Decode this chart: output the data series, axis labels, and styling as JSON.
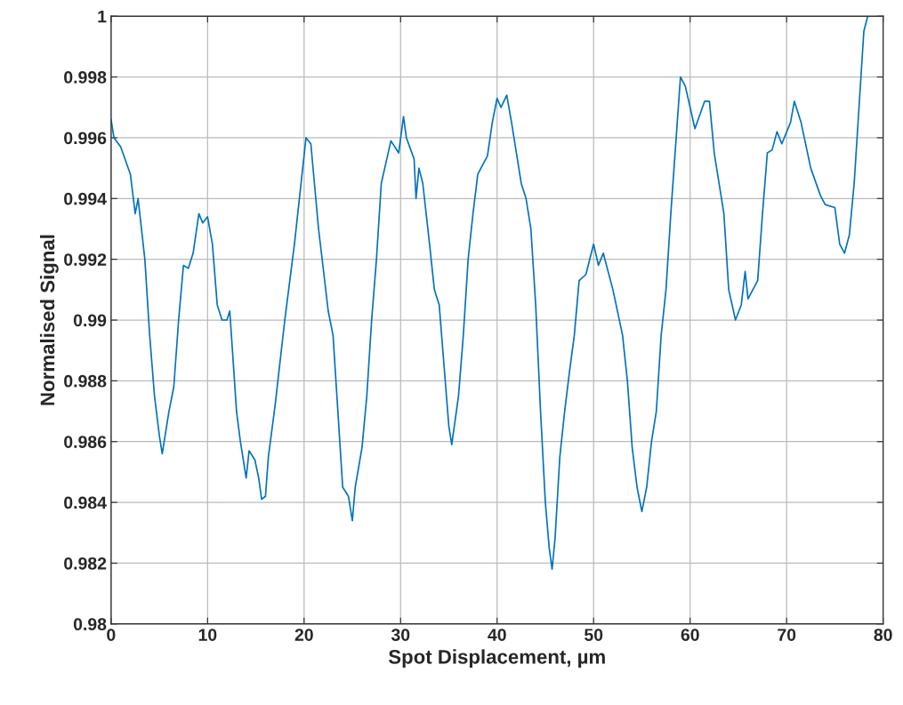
{
  "chart_data": {
    "type": "line",
    "xlabel": "Spot Displacement, µm",
    "ylabel": "Normalised Signal",
    "xlim": [
      0,
      80
    ],
    "xticks": [
      0,
      10,
      20,
      30,
      40,
      50,
      60,
      70,
      80
    ],
    "ylim": [
      0.98,
      1
    ],
    "yticks": [
      0.98,
      0.982,
      0.984,
      0.986,
      0.988,
      0.99,
      0.992,
      0.994,
      0.996,
      0.998,
      1
    ],
    "grid": true,
    "x": [
      0,
      0.3,
      1,
      2,
      2.5,
      2.8,
      3.5,
      4,
      4.5,
      5,
      5.3,
      5.6,
      6,
      6.5,
      7,
      7.5,
      8,
      8.5,
      9.1,
      9.5,
      10,
      10.5,
      11,
      11.5,
      12,
      12.3,
      13,
      13.4,
      14,
      14.3,
      14.9,
      15.3,
      15.6,
      16,
      16.3,
      17,
      18,
      19,
      20.2,
      20.7,
      21.5,
      22.5,
      23,
      23.5,
      24,
      24.6,
      25,
      25.3,
      26,
      26.5,
      27,
      27.5,
      28,
      29,
      29.8,
      30.3,
      30.6,
      31.4,
      31.6,
      31.9,
      32.3,
      33,
      33.5,
      34,
      34.5,
      35,
      35.3,
      36,
      36.5,
      37,
      37.5,
      38,
      38.5,
      39,
      39.5,
      40,
      40.4,
      41,
      41.5,
      42,
      42.5,
      43,
      43.5,
      44,
      44.5,
      45,
      45.4,
      45.7,
      46,
      46.5,
      47,
      47.5,
      48,
      48.5,
      49.2,
      50,
      50.5,
      51,
      52,
      53,
      53.5,
      54,
      54.5,
      55,
      55.5,
      56,
      56.5,
      57,
      57.5,
      58,
      59,
      59.5,
      60.5,
      61.5,
      62,
      62.5,
      63.5,
      64,
      64.7,
      65.3,
      65.7,
      66,
      67,
      67.5,
      68,
      68.5,
      69,
      69.5,
      70.4,
      70.8,
      71.5,
      72.5,
      73.5,
      74,
      75,
      75.5,
      76,
      76.5,
      77,
      77.5,
      78,
      78.4
    ],
    "series": [
      {
        "color": "#0072bd",
        "values": [
          0.9966,
          0.996,
          0.9957,
          0.9948,
          0.9935,
          0.994,
          0.992,
          0.9895,
          0.9875,
          0.9862,
          0.9856,
          0.9862,
          0.987,
          0.9878,
          0.99,
          0.9918,
          0.9917,
          0.9922,
          0.9935,
          0.9932,
          0.9934,
          0.9925,
          0.9905,
          0.99,
          0.99,
          0.9903,
          0.987,
          0.986,
          0.9848,
          0.9857,
          0.9854,
          0.9848,
          0.9841,
          0.9842,
          0.9855,
          0.9872,
          0.99,
          0.9925,
          0.996,
          0.9958,
          0.993,
          0.9903,
          0.9895,
          0.987,
          0.9845,
          0.9842,
          0.9834,
          0.9845,
          0.9858,
          0.9875,
          0.99,
          0.992,
          0.9945,
          0.9959,
          0.9955,
          0.9967,
          0.996,
          0.9953,
          0.994,
          0.995,
          0.9945,
          0.9925,
          0.991,
          0.9905,
          0.9885,
          0.9865,
          0.9859,
          0.9875,
          0.9895,
          0.992,
          0.9935,
          0.9948,
          0.9951,
          0.9954,
          0.9965,
          0.9973,
          0.997,
          0.9974,
          0.9965,
          0.9955,
          0.9945,
          0.994,
          0.993,
          0.9905,
          0.987,
          0.984,
          0.9825,
          0.9818,
          0.9828,
          0.9855,
          0.987,
          0.9883,
          0.9895,
          0.9913,
          0.9915,
          0.9925,
          0.9918,
          0.9922,
          0.991,
          0.9895,
          0.988,
          0.9858,
          0.9845,
          0.9837,
          0.9845,
          0.986,
          0.987,
          0.9895,
          0.991,
          0.9935,
          0.998,
          0.9977,
          0.9963,
          0.9972,
          0.9972,
          0.9955,
          0.9935,
          0.991,
          0.99,
          0.9905,
          0.9916,
          0.9907,
          0.9913,
          0.9935,
          0.9955,
          0.9956,
          0.9962,
          0.9958,
          0.9965,
          0.9972,
          0.9965,
          0.995,
          0.9941,
          0.9938,
          0.9937,
          0.9925,
          0.9922,
          0.9928,
          0.9945,
          0.997,
          0.9995,
          1.0
        ]
      }
    ]
  }
}
